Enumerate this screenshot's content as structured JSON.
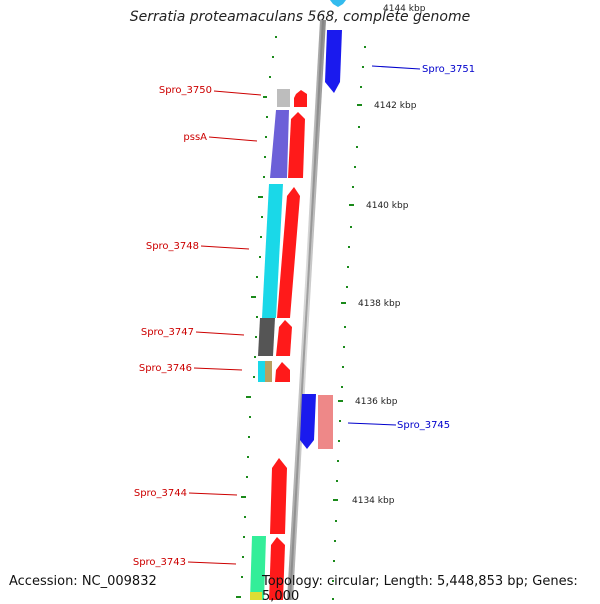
{
  "title": "Serratia proteamaculans 568, complete genome",
  "accession": "Accession: NC_009832",
  "topology": "Topology: circular; Length: 5,448,853 bp; Genes: 5,000",
  "colors": {
    "forward_label": "#cc0000",
    "reverse_label": "#0000cc",
    "tick": "#1a8a1a"
  },
  "scale_labels": [
    "4144 kbp",
    "4142 kbp",
    "4140 kbp",
    "4138 kbp",
    "4136 kbp",
    "4134 kbp"
  ],
  "gene_labels": {
    "spro_3751": "Spro_3751",
    "spro_3750": "Spro_3750",
    "pssA": "pssA",
    "spro_3748": "Spro_3748",
    "spro_3747": "Spro_3747",
    "spro_3746": "Spro_3746",
    "spro_3745": "Spro_3745",
    "spro_3744": "Spro_3744",
    "spro_3743": "Spro_3743"
  }
}
